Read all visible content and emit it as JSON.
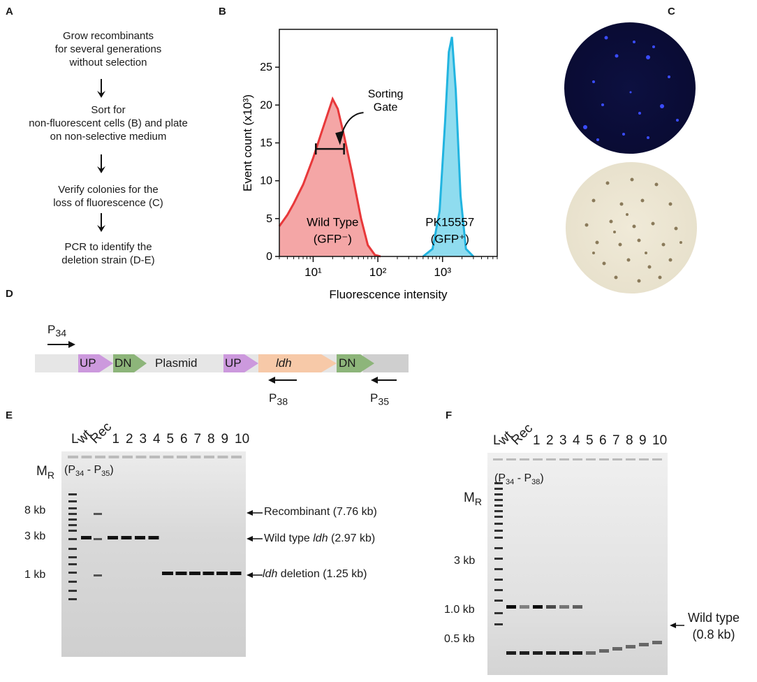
{
  "panels": {
    "A": "A",
    "B": "B",
    "C": "C",
    "D": "D",
    "E": "E",
    "F": "F"
  },
  "panelA": {
    "steps": [
      "Grow recombinants\nfor several generations\nwithout selection",
      "Sort for\nnon-fluorescent cells (B) and plate\non non-selective medium",
      "Verify colonies for the\nloss of fluorescence (C)",
      "PCR to identify the\ndeletion strain (D-E)"
    ]
  },
  "chart_data": {
    "type": "area",
    "xlabel": "Fluorescence intensity",
    "ylabel": "Event count (x10³)",
    "xscale": "log",
    "xlim": [
      3,
      7000
    ],
    "ylim": [
      0,
      30
    ],
    "x_ticks": [
      "10¹",
      "10²",
      "10³"
    ],
    "y_ticks": [
      "0",
      "5",
      "10",
      "15",
      "20",
      "25"
    ],
    "series": [
      {
        "name": "Wild Type (GFP⁻)",
        "color": "#e8383a",
        "fill": "#f4a6a6",
        "x": [
          3,
          4,
          5,
          7,
          10,
          13,
          17,
          20,
          24,
          30,
          40,
          55,
          70,
          90,
          110
        ],
        "y": [
          4,
          5.5,
          7,
          9.5,
          13,
          16,
          19,
          20.8,
          19.5,
          16,
          11,
          5,
          1.5,
          0.2,
          0
        ]
      },
      {
        "name": "PK15557 (GFP⁺)",
        "color": "#21b4e0",
        "fill": "#8fdcef",
        "x": [
          500,
          700,
          900,
          1100,
          1250,
          1400,
          1600,
          1900,
          2300,
          3000
        ],
        "y": [
          0,
          1,
          6,
          18,
          27,
          29,
          22,
          8,
          1,
          0
        ]
      }
    ],
    "annotations": {
      "sorting_gate": "Sorting\nGate",
      "wt_label_1": "Wild Type",
      "wt_label_2": "(GFP⁻)",
      "pk_label_1": "PK15557",
      "pk_label_2": "(GFP⁺)"
    }
  },
  "panelD": {
    "segments": [
      "UP",
      "DN",
      "Plasmid",
      "UP",
      "ldh",
      "DN"
    ],
    "primers": {
      "p34": "P",
      "p34_sub": "34",
      "p38": "P",
      "p38_sub": "38",
      "p35": "P",
      "p35_sub": "35"
    }
  },
  "panelE": {
    "lanes": [
      "L",
      "wt",
      "Rec",
      "1",
      "2",
      "3",
      "4",
      "5",
      "6",
      "7",
      "8",
      "9",
      "10"
    ],
    "mr": "M",
    "mr_sub": "R",
    "primer_pair": "(P34 - P35)",
    "markers": [
      "8 kb",
      "3 kb",
      "1 kb"
    ],
    "bands": {
      "recombinant": "Recombinant (7.76 kb)",
      "wildtype_pre": "Wild type ",
      "wildtype_gene": "ldh",
      "wildtype_post": " (2.97 kb)",
      "deletion_gene": "ldh",
      "deletion_post": " deletion (1.25 kb)"
    }
  },
  "panelF": {
    "lanes": [
      "L",
      "wt",
      "Rec",
      "1",
      "2",
      "3",
      "4",
      "5",
      "6",
      "7",
      "8",
      "9",
      "10"
    ],
    "mr": "M",
    "mr_sub": "R",
    "primer_pair": "(P34 - P38)",
    "markers": [
      "3 kb",
      "1.0 kb",
      "0.5 kb"
    ],
    "band": "Wild type\n(0.8 kb)"
  }
}
